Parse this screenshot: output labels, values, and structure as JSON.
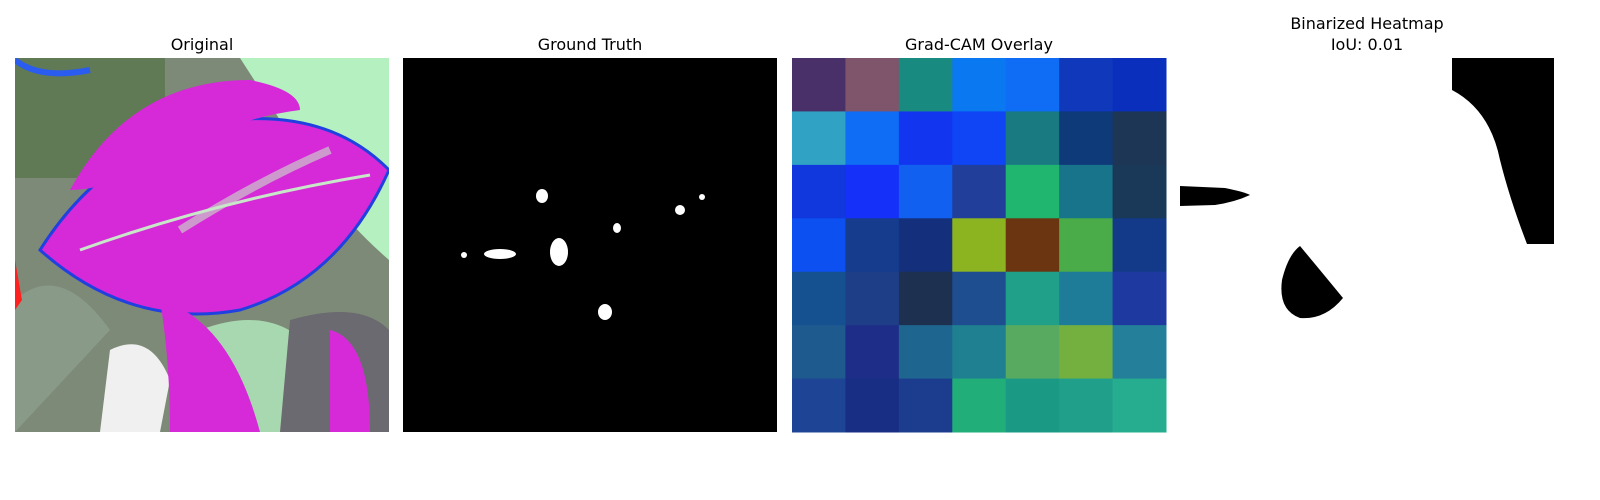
{
  "panels": [
    {
      "title": "Original"
    },
    {
      "title": "Ground Truth"
    },
    {
      "title": "Grad-CAM Overlay"
    },
    {
      "title": "Binarized Heatmap",
      "subtitle": "IoU: 0.01"
    }
  ]
}
